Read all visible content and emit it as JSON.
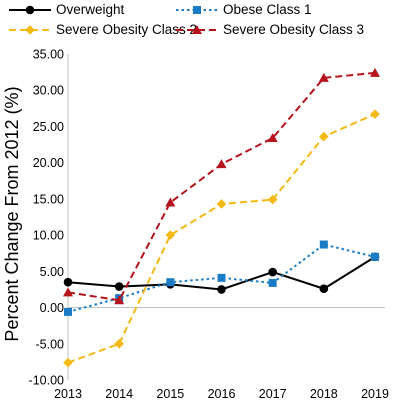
{
  "chart_data": {
    "type": "line",
    "ylabel": "Percent Change From 2012 (%)",
    "xlabel": "",
    "x": [
      "2013",
      "2014",
      "2015",
      "2016",
      "2017",
      "2018",
      "2019"
    ],
    "ylim": [
      -10,
      35
    ],
    "yticks": [
      "35.00",
      "30.00",
      "25.00",
      "20.00",
      "15.00",
      "10.00",
      "5.00",
      "0.00",
      "-5.00",
      "-10.00"
    ],
    "ytick_values": [
      35,
      30,
      25,
      20,
      15,
      10,
      5,
      0,
      -5,
      -10
    ],
    "grid": false,
    "legend_position": "top",
    "series": [
      {
        "name": "Overweight",
        "values": [
          3.5,
          2.9,
          3.2,
          2.5,
          4.9,
          2.6,
          7.0
        ],
        "color": "#000000",
        "dash": "solid",
        "marker": "circle"
      },
      {
        "name": "Obese Class 1",
        "values": [
          -0.6,
          1.3,
          3.5,
          4.1,
          3.4,
          8.7,
          7.0
        ],
        "color": "#1a7cc6",
        "dash": "dot",
        "marker": "square"
      },
      {
        "name": "Severe Obesity Class 2",
        "values": [
          -7.6,
          -5.0,
          10.0,
          14.3,
          14.9,
          23.6,
          26.7
        ],
        "color": "#f5b915",
        "dash": "dash",
        "marker": "diamond"
      },
      {
        "name": "Severe Obesity Class 3",
        "values": [
          2.1,
          1.0,
          14.5,
          19.8,
          23.4,
          31.7,
          32.4
        ],
        "color": "#b5141c",
        "dash": "dash",
        "marker": "triangle"
      }
    ]
  }
}
